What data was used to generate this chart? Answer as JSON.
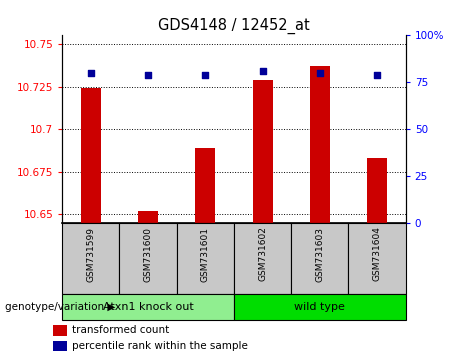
{
  "title": "GDS4148 / 12452_at",
  "categories": [
    "GSM731599",
    "GSM731600",
    "GSM731601",
    "GSM731602",
    "GSM731603",
    "GSM731604"
  ],
  "red_values": [
    10.724,
    10.652,
    10.689,
    10.729,
    10.737,
    10.683
  ],
  "blue_values": [
    80,
    79,
    79,
    81,
    80,
    79
  ],
  "ylim_left": [
    10.645,
    10.755
  ],
  "ylim_right": [
    0,
    100
  ],
  "yticks_left": [
    10.65,
    10.675,
    10.7,
    10.725,
    10.75
  ],
  "yticks_right": [
    0,
    25,
    50,
    75,
    100
  ],
  "ytick_labels_left": [
    "10.65",
    "10.675",
    "10.7",
    "10.725",
    "10.75"
  ],
  "ytick_labels_right": [
    "0",
    "25",
    "50",
    "75",
    "100%"
  ],
  "group1_label": "Atxn1 knock out",
  "group2_label": "wild type",
  "group1_indices": [
    0,
    1,
    2
  ],
  "group2_indices": [
    3,
    4,
    5
  ],
  "group1_color": "#90EE90",
  "group2_color": "#00DD00",
  "genotype_label": "genotype/variation",
  "legend_red": "transformed count",
  "legend_blue": "percentile rank within the sample",
  "bar_color": "#CC0000",
  "dot_color": "#000099",
  "tick_bg_color": "#C8C8C8",
  "bar_width": 0.35
}
